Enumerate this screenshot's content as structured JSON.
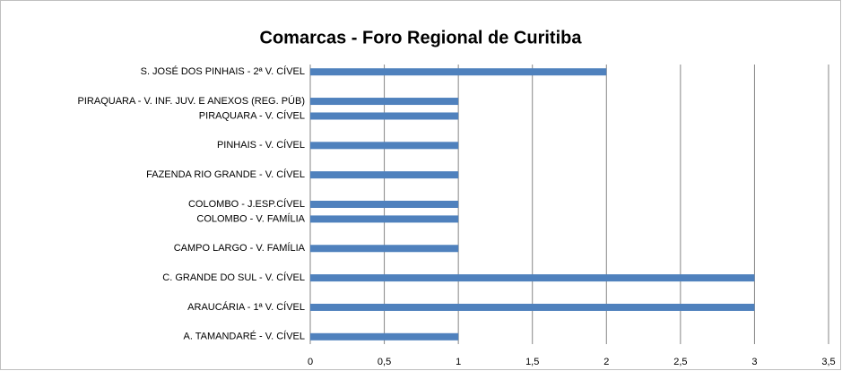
{
  "chart_data": {
    "type": "barh",
    "title": "Comarcas - Foro Regional de Curitiba",
    "categories": [
      "A. TAMANDARÉ - V. CÍVEL",
      null,
      "ARAUCÁRIA - 1ª V. CÍVEL",
      null,
      "C. GRANDE DO SUL - V. CÍVEL",
      null,
      "CAMPO LARGO - V. FAMÍLIA",
      null,
      "COLOMBO - V. FAMÍLIA",
      "COLOMBO - J.ESP.CÍVEL",
      null,
      "FAZENDA RIO GRANDE - V. CÍVEL",
      null,
      "PINHAIS - V. CÍVEL",
      null,
      "PIRAQUARA - V. CÍVEL",
      "PIRAQUARA - V. INF. JUV. E ANEXOS (REG. PÚB)",
      null,
      "S. JOSÉ DOS PINHAIS - 2ª V. CÍVEL"
    ],
    "values": [
      1,
      null,
      3,
      null,
      3,
      null,
      1,
      null,
      1,
      1,
      null,
      1,
      null,
      1,
      null,
      1,
      1,
      null,
      2
    ],
    "color": "#4f81bd",
    "xlim": [
      0,
      3.5
    ],
    "xticks": [
      0,
      {
        "value": 0.5,
        "label": "0,5"
      },
      1,
      {
        "value": 1.5,
        "label": "1,5"
      },
      2,
      {
        "value": 2.5,
        "label": "2,5"
      },
      3,
      {
        "value": 3.5,
        "label": "3,5"
      }
    ],
    "grid": true
  }
}
